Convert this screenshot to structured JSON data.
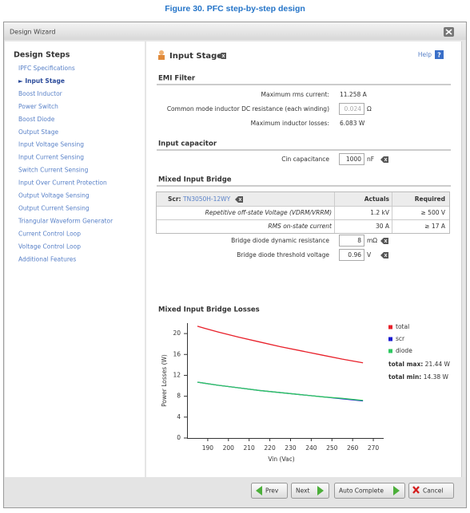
{
  "caption": "Figure 30. PFC step-by-step design",
  "window": {
    "title": "Design Wizard"
  },
  "sidebar": {
    "title": "Design Steps",
    "steps": [
      "IPFC Specifications",
      "► Input Stage",
      "Boost Inductor",
      "Power Switch",
      "Boost Diode",
      "Output Stage",
      "Input Voltage Sensing",
      "Input Current Sensing",
      "Switch Current Sensing",
      "Input Over Current Protection",
      "Output Voltage Sensing",
      "Output Current Sensing",
      "Triangular Waveform Generator",
      "Current Control Loop",
      "Voltage Control Loop",
      "Additional Features"
    ]
  },
  "page": {
    "title": "Input Stage",
    "help": "Help"
  },
  "emi": {
    "heading": "EMI Filter",
    "rows": [
      {
        "label": "Maximum rms current:",
        "value": "11.258 A"
      },
      {
        "label": "Common mode inductor DC resistance (each winding)",
        "input": "0.024",
        "unit": "Ω"
      },
      {
        "label": "Maximum inductor losses:",
        "value": "6.083 W"
      }
    ]
  },
  "capacitor": {
    "heading": "Input capacitor",
    "rows": [
      {
        "label": "Cin capacitance",
        "input": "1000",
        "unit": "nF"
      }
    ]
  },
  "bridge": {
    "heading": "Mixed Input Bridge",
    "table": {
      "device": "Scr:",
      "part": "TN3050H-12WY",
      "headers": [
        "Actuals",
        "Required"
      ],
      "rows": [
        [
          "Repetitive off-state Voltage (VDRM/VRRM)",
          "1.2 kV",
          "≥ 500 V"
        ],
        [
          "RMS on-state current",
          "30 A",
          "≥ 17 A"
        ]
      ]
    },
    "rows": [
      {
        "label": "Bridge diode dynamic resistance",
        "input": "8",
        "unit": "mΩ"
      },
      {
        "label": "Bridge diode threshold voltage",
        "input": "0.96",
        "unit": "V"
      }
    ]
  },
  "buttons": [
    "Prev",
    "Next",
    "Auto Complete",
    "Cancel"
  ],
  "chart_data": {
    "type": "line",
    "title": "Mixed Input Bridge Losses",
    "xlabel": "Vin (Vac)",
    "ylabel": "Power Losses (W)",
    "x": [
      185,
      195,
      205,
      215,
      225,
      235,
      245,
      255,
      265
    ],
    "series": [
      {
        "name": "total",
        "color": "#e8202a",
        "values": [
          21.4,
          20.3,
          19.3,
          18.4,
          17.5,
          16.7,
          15.9,
          15.1,
          14.4
        ]
      },
      {
        "name": "scr",
        "color": "#1a1ad0",
        "values": [
          10.7,
          10.1,
          9.6,
          9.1,
          8.7,
          8.3,
          7.9,
          7.5,
          7.1
        ]
      },
      {
        "name": "diode",
        "color": "#2ec860",
        "values": [
          10.7,
          10.1,
          9.6,
          9.1,
          8.7,
          8.3,
          7.9,
          7.6,
          7.2
        ]
      }
    ],
    "xlim": [
      180,
      275
    ],
    "ylim": [
      0,
      22
    ],
    "xticks": [
      190,
      200,
      210,
      220,
      230,
      240,
      250,
      260,
      270
    ],
    "yticks": [
      0,
      4,
      8,
      12,
      16,
      20
    ],
    "annotations": [
      {
        "label": "total max:",
        "text": "21.44 W"
      },
      {
        "label": "total min:",
        "text": "14.38 W"
      }
    ]
  }
}
